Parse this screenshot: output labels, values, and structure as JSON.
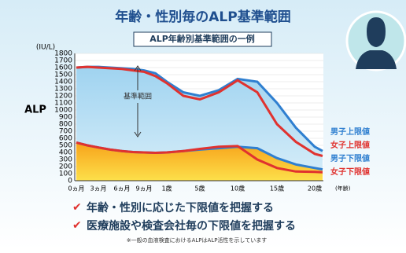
{
  "chart_data": {
    "type": "area-line",
    "title": "年齢・性別毎のALP基準範囲",
    "subtitle": "ALP年齢別基準範囲の一例",
    "ylabel": "ALP",
    "y_unit": "(IU/L)",
    "xlabel": "(年齢)",
    "annotation": "基準範囲",
    "categories": [
      "0ヵ月",
      null,
      "3ヵ月",
      null,
      "6ヵ月",
      null,
      "9ヵ月",
      null,
      "1歳",
      null,
      "5歳",
      null,
      "10歳",
      null,
      "15歳",
      null,
      "20歳",
      null
    ],
    "ylim": [
      0,
      1800
    ],
    "yticks": [
      0,
      100,
      200,
      300,
      400,
      500,
      600,
      700,
      800,
      900,
      1000,
      1100,
      1200,
      1300,
      1400,
      1500,
      1600,
      1700,
      1800
    ],
    "grid": true,
    "series": [
      {
        "name": "男子上限値",
        "color": "#2f7fd0",
        "values": [
          1600,
          1610,
          1610,
          1600,
          1590,
          1580,
          1560,
          1520,
          1400,
          1250,
          1200,
          1280,
          1440,
          1400,
          1100,
          750,
          480,
          420
        ]
      },
      {
        "name": "女子上限値",
        "color": "#e0322f",
        "values": [
          1600,
          1610,
          1600,
          1590,
          1580,
          1560,
          1540,
          1480,
          1380,
          1200,
          1150,
          1250,
          1420,
          1250,
          800,
          550,
          380,
          350
        ]
      },
      {
        "name": "男子下限値",
        "color": "#2f7fd0",
        "values": [
          540,
          500,
          470,
          440,
          420,
          405,
          400,
          395,
          400,
          420,
          440,
          460,
          480,
          460,
          320,
          230,
          180,
          160
        ]
      },
      {
        "name": "女子下限値",
        "color": "#e0322f",
        "values": [
          540,
          500,
          470,
          440,
          420,
          405,
          400,
          395,
          400,
          420,
          450,
          480,
          490,
          300,
          180,
          130,
          125,
          120
        ]
      }
    ],
    "notes": [
      "年齢・性別に応じた下限値を把握する",
      "医療施設や検査会社毎の下限値を把握する"
    ],
    "footnote": "※一般の血液検査におけるALPはALP活性を示しています"
  }
}
